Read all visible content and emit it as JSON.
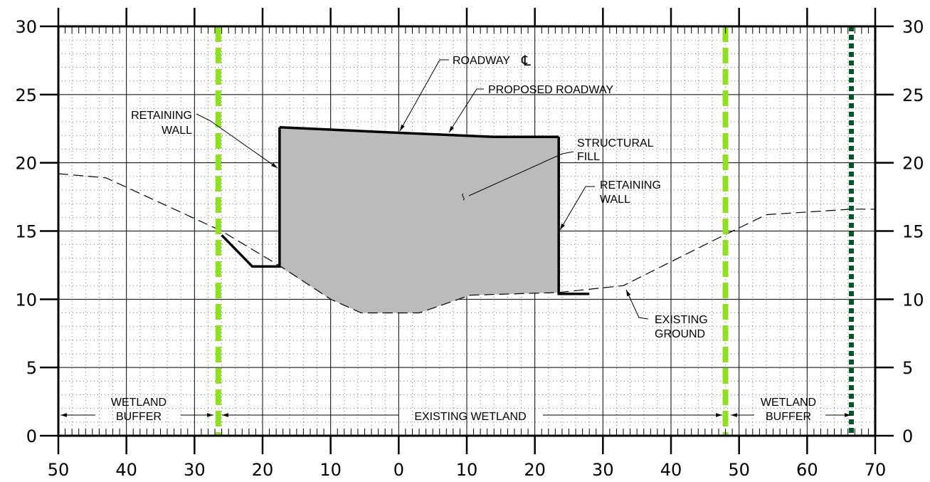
{
  "chart_data": {
    "type": "cross-section",
    "y_ticks": [
      "0",
      "5",
      "10",
      "15",
      "20",
      "25",
      "30"
    ],
    "x_ticks": [
      "50",
      "40",
      "30",
      "20",
      "10",
      "0",
      "10",
      "20",
      "30",
      "40",
      "50",
      "60",
      "70"
    ],
    "x_range": [
      -50,
      70
    ],
    "y_range": [
      0,
      30
    ],
    "grid": true,
    "existing_ground": [
      [
        -50,
        19.2
      ],
      [
        -43,
        18.9
      ],
      [
        -26,
        15.0
      ],
      [
        -17,
        12.3
      ],
      [
        -10,
        10.0
      ],
      [
        -5.5,
        9.0
      ],
      [
        3,
        9.0
      ],
      [
        10.5,
        10.3
      ],
      [
        23.5,
        10.5
      ],
      [
        33,
        11.0
      ],
      [
        47,
        14.5
      ],
      [
        54,
        16.2
      ],
      [
        66.5,
        16.6
      ],
      [
        70,
        16.6
      ]
    ],
    "proposed_roadway": [
      [
        -17.5,
        22.6
      ],
      [
        0,
        22.2
      ],
      [
        14,
        21.9
      ],
      [
        23.5,
        21.9
      ]
    ],
    "structural_fill": [
      [
        -17.5,
        22.6
      ],
      [
        0,
        22.2
      ],
      [
        14,
        21.9
      ],
      [
        23.5,
        21.9
      ],
      [
        23.5,
        10.5
      ],
      [
        10.5,
        10.3
      ],
      [
        3,
        9.0
      ],
      [
        -5.5,
        9.0
      ],
      [
        -10,
        10.0
      ],
      [
        -17.5,
        12.4
      ]
    ],
    "left_wall": [
      [
        -26,
        14.7
      ],
      [
        -21.5,
        12.4
      ],
      [
        -17.5,
        12.4
      ],
      [
        -17.5,
        22.6
      ]
    ],
    "right_wall": [
      [
        23.5,
        21.9
      ],
      [
        23.5,
        10.4
      ],
      [
        28,
        10.4
      ]
    ],
    "boundaries": [
      {
        "x": -26.5,
        "kind": "wetland",
        "color": "#8fe01f"
      },
      {
        "x": 48,
        "kind": "wetland",
        "color": "#8fe01f"
      },
      {
        "x": 66.5,
        "kind": "buffer",
        "color": "#00552b"
      }
    ]
  },
  "labels": {
    "roadway_cl": "ROADWAY",
    "cl_symbol": "℄",
    "proposed_roadway": "PROPOSED  ROADWAY",
    "retaining_wall_left_1": "RETAINING",
    "retaining_wall_left_2": "WALL",
    "structural_fill_1": "STRUCTURAL",
    "structural_fill_2": "FILL",
    "retaining_wall_right_1": "RETAINING",
    "retaining_wall_right_2": "WALL",
    "existing_ground_1": "EXISTING",
    "existing_ground_2": "GROUND",
    "wetland_buffer_left_1": "WETLAND",
    "wetland_buffer_left_2": "BUFFER",
    "existing_wetland": "EXISTING  WETLAND",
    "wetland_buffer_right_1": "WETLAND",
    "wetland_buffer_right_2": "BUFFER"
  }
}
